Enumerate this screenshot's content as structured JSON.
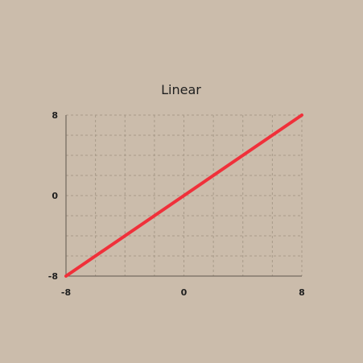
{
  "chart_data": {
    "type": "line",
    "title": "Linear",
    "xlabel": "",
    "ylabel": "",
    "xlim": [
      -8,
      8
    ],
    "ylim": [
      -8,
      8
    ],
    "x_ticks": [
      -8,
      0,
      8
    ],
    "y_ticks": [
      -8,
      0,
      8
    ],
    "x_tick_labels": [
      "-8",
      "0",
      "8"
    ],
    "y_tick_labels": [
      "-8",
      "0",
      "8"
    ],
    "grid": true,
    "series": [
      {
        "color": "#f0303a",
        "x": [
          -8,
          8
        ],
        "y": [
          -8,
          8
        ]
      }
    ]
  }
}
